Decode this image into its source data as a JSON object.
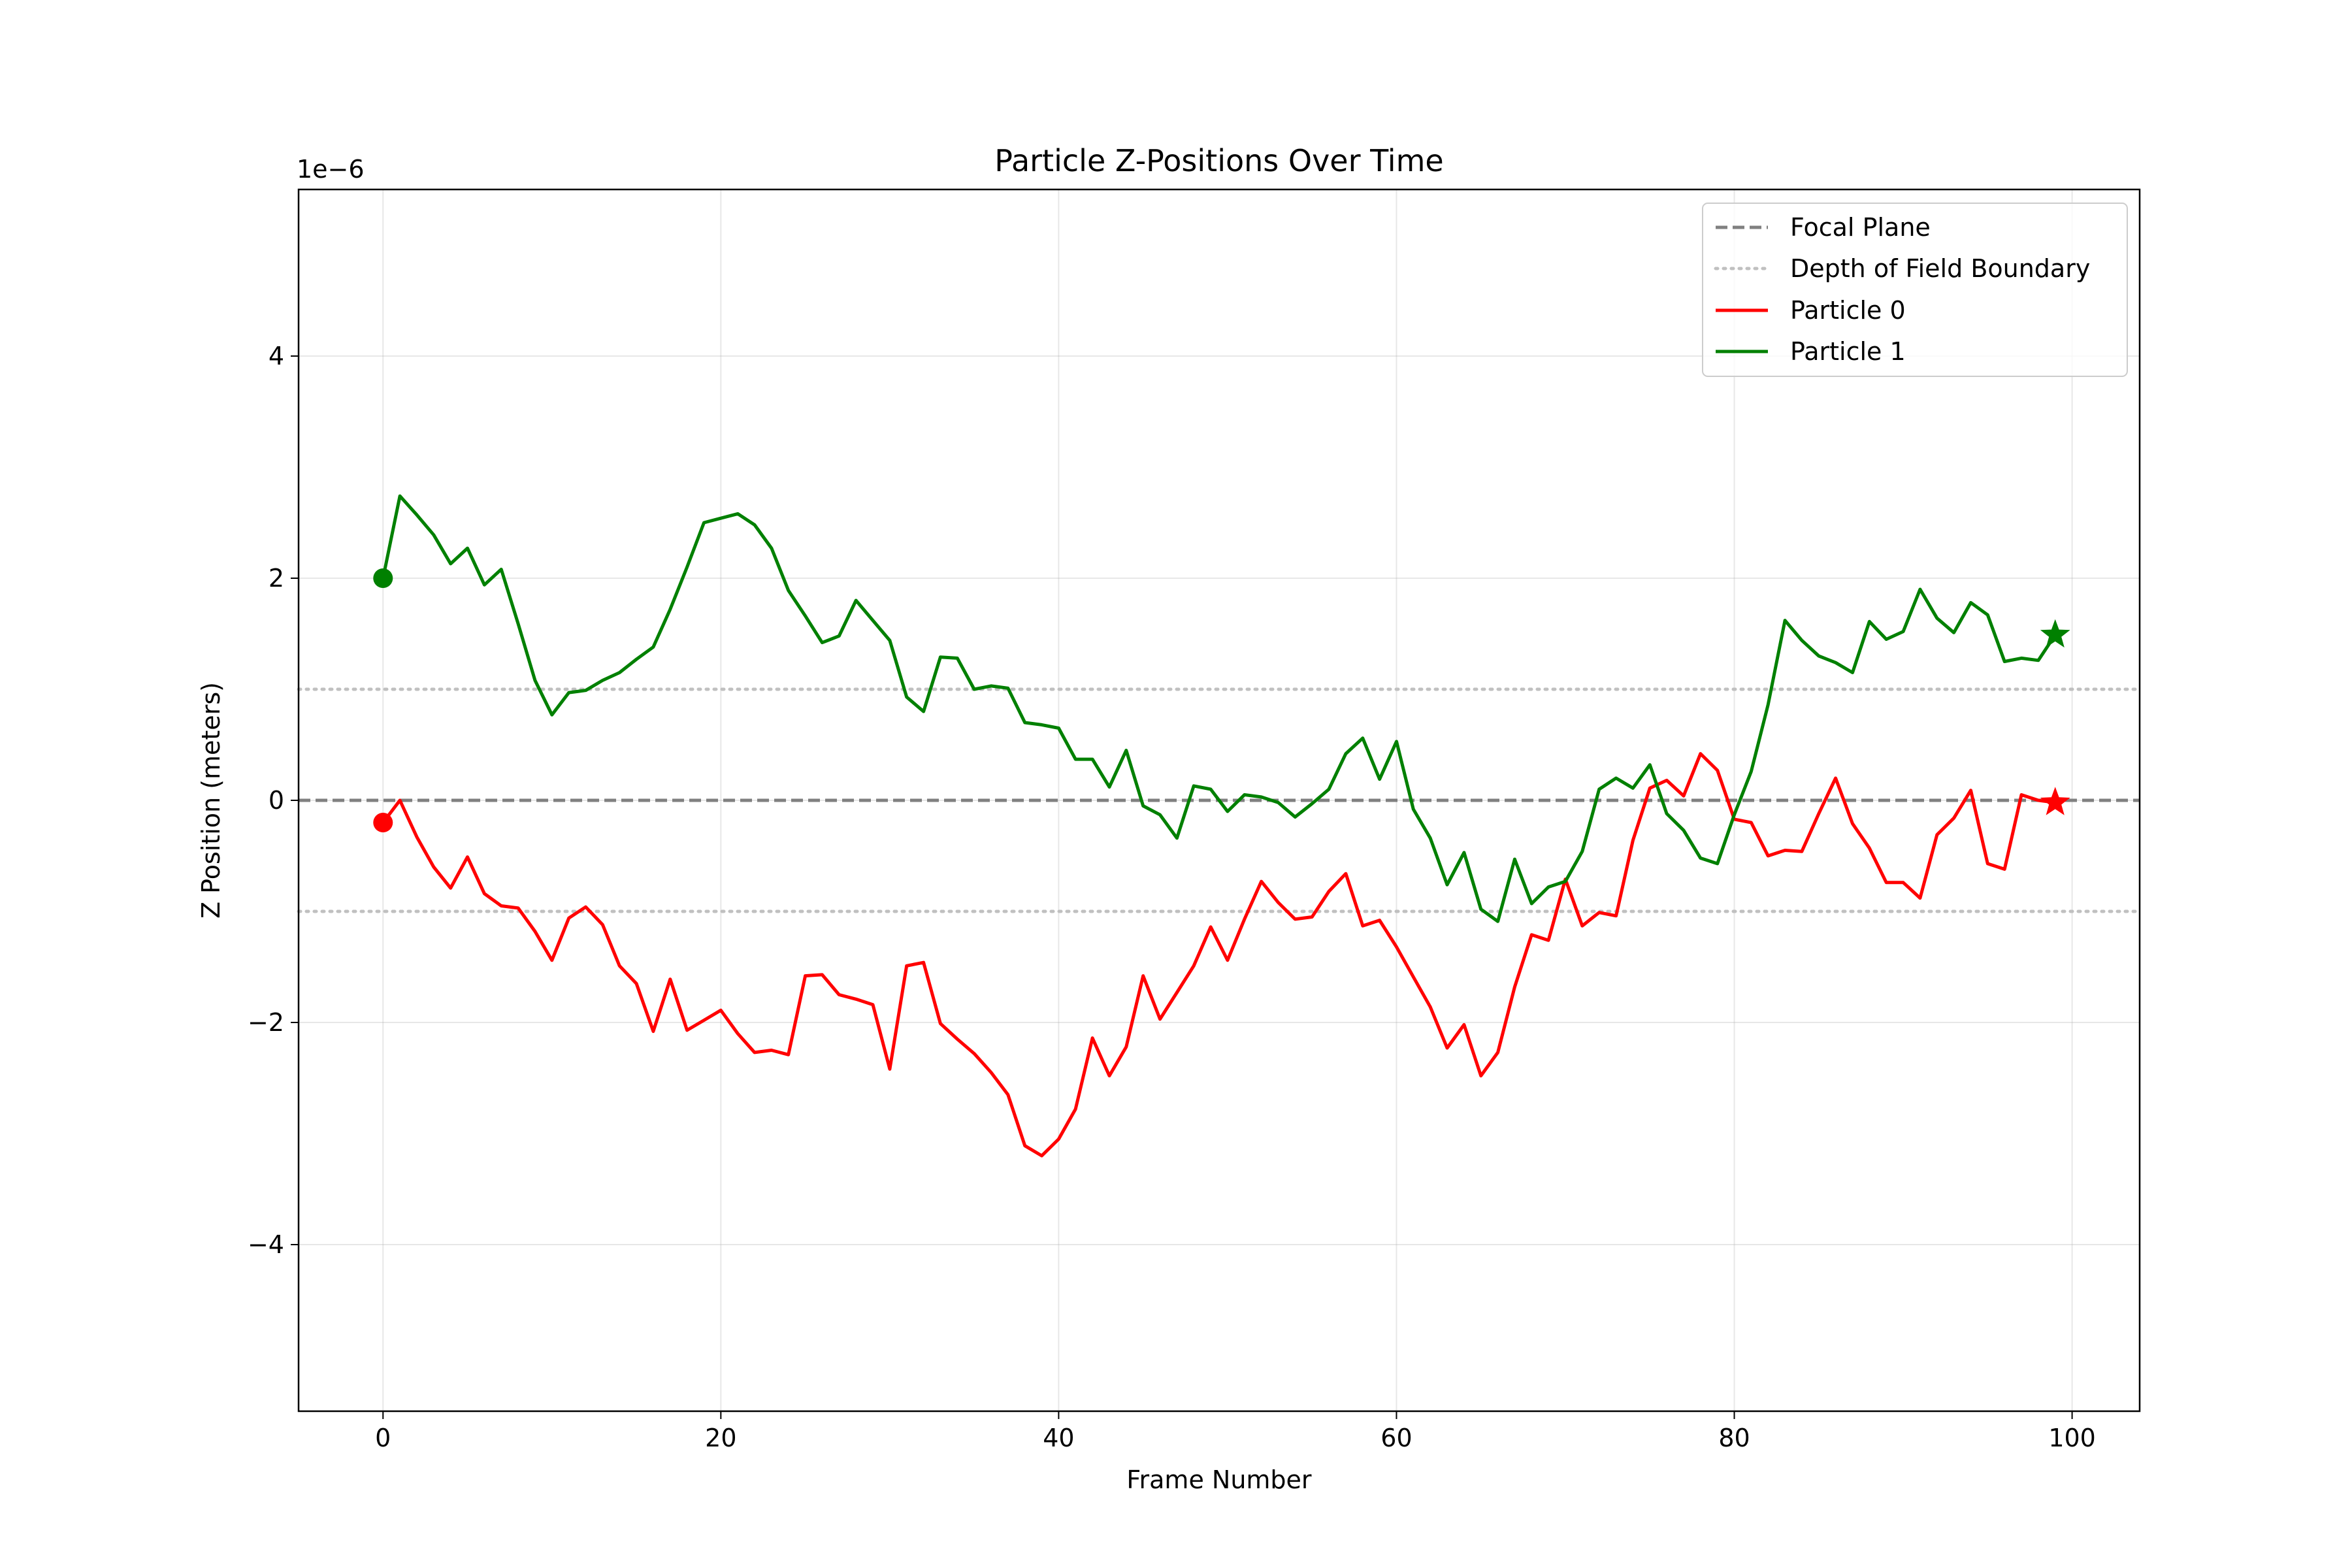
{
  "chart_data": {
    "type": "line",
    "title": "Particle Z-Positions Over Time",
    "xlabel": "Frame Number",
    "ylabel": "Z Position (meters)",
    "y_offset_label": "1e−6",
    "xlim": [
      -5,
      104
    ],
    "ylim": [
      -5.5,
      5.5
    ],
    "xticks": [
      0,
      20,
      40,
      60,
      80,
      100
    ],
    "yticks": [
      -4,
      -2,
      0,
      2,
      4
    ],
    "ytick_labels": [
      "−4",
      "−2",
      "0",
      "2",
      "4"
    ],
    "grid": true,
    "legend_location": "upper right",
    "reference_lines": [
      {
        "name": "Focal Plane",
        "y": 0,
        "style": "dashed",
        "color": "#808080"
      },
      {
        "name": "Depth of Field Boundary",
        "y": 1,
        "style": "dotted",
        "color": "#c0c0c0"
      },
      {
        "name": "Depth of Field Boundary",
        "y": -1,
        "style": "dotted",
        "color": "#c0c0c0"
      }
    ],
    "series": [
      {
        "name": "Particle 0",
        "color": "#ff0000",
        "x_start": 0,
        "values": [
          -0.2,
          0.0,
          -0.33,
          -0.6,
          -0.79,
          -0.51,
          -0.84,
          -0.95,
          -0.97,
          -1.18,
          -1.44,
          -1.06,
          -0.96,
          -1.12,
          -1.49,
          -1.65,
          -2.08,
          -1.61,
          -2.07,
          -1.98,
          -1.89,
          -2.1,
          -2.27,
          -2.25,
          -2.29,
          -1.58,
          -1.57,
          -1.75,
          -1.79,
          -1.84,
          -2.42,
          -1.49,
          -1.46,
          -2.01,
          -2.15,
          -2.28,
          -2.45,
          -2.65,
          -3.11,
          -3.2,
          -3.05,
          -2.78,
          -2.14,
          -2.48,
          -2.22,
          -1.58,
          -1.97,
          -1.73,
          -1.49,
          -1.14,
          -1.44,
          -1.07,
          -0.73,
          -0.92,
          -1.07,
          -1.05,
          -0.82,
          -0.66,
          -1.13,
          -1.08,
          -1.32,
          -1.59,
          -1.86,
          -2.23,
          -2.02,
          -2.48,
          -2.27,
          -1.68,
          -1.21,
          -1.26,
          -0.71,
          -1.13,
          -1.01,
          -1.04,
          -0.36,
          0.11,
          0.18,
          0.04,
          0.42,
          0.27,
          -0.17,
          -0.2,
          -0.5,
          -0.45,
          -0.46,
          -0.12,
          0.2,
          -0.21,
          -0.43,
          -0.74,
          -0.74,
          -0.88,
          -0.31,
          -0.16,
          0.09,
          -0.57,
          -0.62,
          0.05,
          0.0,
          -0.02
        ],
        "start_marker": "circle",
        "end_marker": "star"
      },
      {
        "name": "Particle 1",
        "color": "#008000",
        "x_start": 0,
        "values": [
          2.0,
          2.74,
          2.57,
          2.39,
          2.13,
          2.27,
          1.94,
          2.08,
          1.59,
          1.08,
          0.77,
          0.97,
          0.99,
          1.08,
          1.15,
          1.27,
          1.38,
          1.72,
          2.1,
          2.5,
          2.54,
          2.58,
          2.48,
          2.27,
          1.89,
          1.66,
          1.42,
          1.48,
          1.8,
          1.62,
          1.44,
          0.93,
          0.8,
          1.29,
          1.28,
          1.0,
          1.03,
          1.01,
          0.7,
          0.68,
          0.65,
          0.37,
          0.37,
          0.12,
          0.45,
          -0.05,
          -0.13,
          -0.34,
          0.13,
          0.1,
          -0.1,
          0.05,
          0.03,
          -0.02,
          -0.15,
          -0.03,
          0.1,
          0.42,
          0.56,
          0.19,
          0.53,
          -0.08,
          -0.34,
          -0.76,
          -0.47,
          -0.98,
          -1.09,
          -0.53,
          -0.93,
          -0.78,
          -0.73,
          -0.46,
          0.1,
          0.2,
          0.11,
          0.32,
          -0.12,
          -0.27,
          -0.52,
          -0.57,
          -0.13,
          0.26,
          0.86,
          1.62,
          1.44,
          1.3,
          1.24,
          1.15,
          1.61,
          1.45,
          1.52,
          1.9,
          1.64,
          1.51,
          1.78,
          1.67,
          1.25,
          1.28,
          1.26,
          1.49
        ],
        "start_marker": "circle",
        "end_marker": "star"
      }
    ]
  }
}
